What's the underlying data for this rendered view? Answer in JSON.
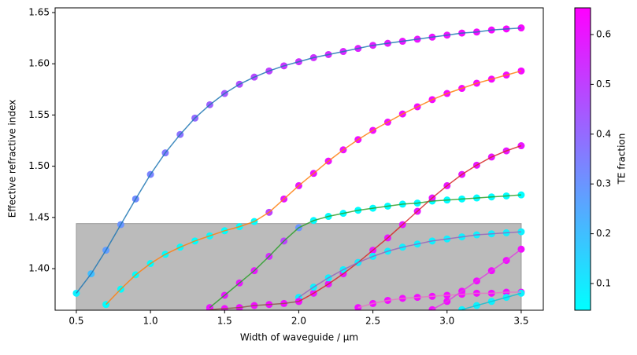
{
  "chart_data": {
    "type": "scatter",
    "xlabel": "Width of waveguide / µm",
    "ylabel": "Effective refractive index",
    "xlim": [
      0.357,
      3.649
    ],
    "ylim": [
      1.3594,
      1.6546
    ],
    "xticks": [
      0.5,
      {
        "value": 1.0,
        "label": "1.0"
      },
      1.5,
      {
        "value": 2.0,
        "label": "2.0"
      },
      2.5,
      {
        "value": 3.0,
        "label": "3.0"
      },
      3.5
    ],
    "yticks": [
      {
        "value": 1.4,
        "label": "1.40"
      },
      {
        "value": 1.45,
        "label": "1.45"
      },
      {
        "value": 1.5,
        "label": "1.50"
      },
      {
        "value": 1.55,
        "label": "1.55"
      },
      {
        "value": 1.6,
        "label": "1.60"
      },
      {
        "value": 1.65,
        "label": "1.65"
      }
    ],
    "band": {
      "x": [
        0.5,
        3.5
      ],
      "top": 1.444,
      "color": "#bbbbbb"
    },
    "colorbar": {
      "label": "TE fraction",
      "lim": [
        0.0464,
        0.6536
      ],
      "ticks": [
        0.1,
        0.2,
        0.3,
        0.4,
        0.5,
        0.6
      ],
      "colors": [
        "#00ffff",
        "#ff00ff"
      ]
    },
    "series": [
      {
        "color": "#1f77b4",
        "x": [
          0.5,
          0.6,
          0.7,
          0.8,
          0.9,
          1.0,
          1.1,
          1.2,
          1.3,
          1.4,
          1.5,
          1.6,
          1.7,
          1.8,
          1.9,
          2.0,
          2.1,
          2.2,
          2.3,
          2.4,
          2.5,
          2.6,
          2.7,
          2.8,
          2.9,
          3.0,
          3.1,
          3.2,
          3.3,
          3.4,
          3.5
        ],
        "values": [
          1.376,
          1.395,
          1.418,
          1.443,
          1.468,
          1.492,
          1.513,
          1.531,
          1.547,
          1.56,
          1.571,
          1.58,
          1.587,
          1.593,
          1.598,
          1.602,
          1.606,
          1.609,
          1.612,
          1.615,
          1.618,
          1.62,
          1.622,
          1.624,
          1.626,
          1.628,
          1.63,
          1.631,
          1.633,
          1.634,
          1.635
        ],
        "te": [
          0.08,
          0.2,
          0.28,
          0.3,
          0.32,
          0.34,
          0.36,
          0.38,
          0.4,
          0.42,
          0.44,
          0.46,
          0.48,
          0.5,
          0.52,
          0.53,
          0.54,
          0.55,
          0.56,
          0.57,
          0.58,
          0.59,
          0.6,
          0.6,
          0.61,
          0.61,
          0.62,
          0.62,
          0.63,
          0.63,
          0.63
        ]
      },
      {
        "color": "#ff7f0e",
        "x": [
          0.7,
          0.8,
          0.9,
          1.0,
          1.1,
          1.2,
          1.3,
          1.4,
          1.5,
          1.6,
          1.7,
          1.8,
          1.9,
          2.0,
          2.1,
          2.2,
          2.3,
          2.4,
          2.5,
          2.6,
          2.7,
          2.8,
          2.9,
          3.0,
          3.1,
          3.2,
          3.3,
          3.4,
          3.5
        ],
        "values": [
          1.365,
          1.38,
          1.394,
          1.405,
          1.414,
          1.421,
          1.427,
          1.432,
          1.437,
          1.441,
          1.446,
          1.455,
          1.468,
          1.481,
          1.493,
          1.505,
          1.516,
          1.526,
          1.535,
          1.543,
          1.551,
          1.558,
          1.565,
          1.571,
          1.576,
          1.581,
          1.585,
          1.589,
          1.593
        ],
        "te": [
          0.05,
          0.05,
          0.05,
          0.05,
          0.05,
          0.05,
          0.05,
          0.05,
          0.05,
          0.05,
          0.05,
          0.5,
          0.6,
          0.6,
          0.61,
          0.61,
          0.61,
          0.62,
          0.62,
          0.62,
          0.62,
          0.62,
          0.63,
          0.63,
          0.63,
          0.63,
          0.63,
          0.63,
          0.63
        ]
      },
      {
        "color": "#2ca02c",
        "x": [
          1.4,
          1.5,
          1.6,
          1.7,
          1.8,
          1.9,
          2.0,
          2.1,
          2.2,
          2.3,
          2.4,
          2.5,
          2.6,
          2.7,
          2.8,
          2.9,
          3.0,
          3.1,
          3.2,
          3.3,
          3.4,
          3.5
        ],
        "values": [
          1.362,
          1.374,
          1.386,
          1.398,
          1.412,
          1.427,
          1.44,
          1.447,
          1.451,
          1.454,
          1.457,
          1.459,
          1.461,
          1.463,
          1.464,
          1.466,
          1.467,
          1.468,
          1.469,
          1.47,
          1.471,
          1.472
        ],
        "te": [
          0.6,
          0.6,
          0.6,
          0.6,
          0.55,
          0.5,
          0.3,
          0.06,
          0.05,
          0.05,
          0.05,
          0.05,
          0.05,
          0.05,
          0.05,
          0.05,
          0.05,
          0.05,
          0.05,
          0.05,
          0.05,
          0.05
        ]
      },
      {
        "color": "#d62728",
        "x": [
          2.0,
          2.1,
          2.2,
          2.3,
          2.4,
          2.5,
          2.6,
          2.7,
          2.8,
          2.9,
          3.0,
          3.1,
          3.2,
          3.3,
          3.4,
          3.5
        ],
        "values": [
          1.368,
          1.376,
          1.385,
          1.395,
          1.406,
          1.418,
          1.43,
          1.443,
          1.456,
          1.469,
          1.481,
          1.492,
          1.501,
          1.509,
          1.515,
          1.52
        ],
        "te": [
          0.6,
          0.6,
          0.6,
          0.6,
          0.6,
          0.6,
          0.6,
          0.6,
          0.6,
          0.6,
          0.6,
          0.6,
          0.6,
          0.6,
          0.6,
          0.6
        ]
      },
      {
        "color": "#9467bd",
        "x": [
          2.0,
          2.1,
          2.2,
          2.3,
          2.4,
          2.5,
          2.6,
          2.7,
          2.8,
          2.9,
          3.0,
          3.1,
          3.2,
          3.3,
          3.4,
          3.5
        ],
        "values": [
          1.372,
          1.382,
          1.391,
          1.399,
          1.406,
          1.412,
          1.417,
          1.421,
          1.424,
          1.427,
          1.429,
          1.431,
          1.433,
          1.434,
          1.435,
          1.436
        ],
        "te": [
          0.08,
          0.08,
          0.08,
          0.08,
          0.08,
          0.08,
          0.08,
          0.08,
          0.08,
          0.08,
          0.08,
          0.08,
          0.08,
          0.08,
          0.08,
          0.08
        ]
      },
      {
        "color": "#8c564b",
        "x": [
          1.4,
          1.5,
          1.6,
          1.7,
          1.8,
          1.9,
          2.0
        ],
        "values": [
          1.36,
          1.361,
          1.362,
          1.364,
          1.365,
          1.366,
          1.368
        ],
        "te": [
          0.62,
          0.62,
          0.62,
          0.62,
          0.62,
          0.62,
          0.62
        ]
      },
      {
        "color": "#e377c2",
        "x": [
          2.4,
          2.5,
          2.6,
          2.7,
          2.8,
          2.9,
          3.0,
          3.1,
          3.2,
          3.3,
          3.4,
          3.5
        ],
        "values": [
          1.362,
          1.366,
          1.369,
          1.371,
          1.372,
          1.373,
          1.374,
          1.375,
          1.376,
          1.376,
          1.377,
          1.377
        ],
        "te": [
          0.62,
          0.62,
          0.62,
          0.62,
          0.62,
          0.62,
          0.62,
          0.62,
          0.62,
          0.62,
          0.62,
          0.62
        ]
      },
      {
        "color": "#e040e0",
        "x": [
          2.9,
          3.0,
          3.1,
          3.2,
          3.3,
          3.4,
          3.5
        ],
        "values": [
          1.36,
          1.368,
          1.378,
          1.388,
          1.398,
          1.408,
          1.419
        ],
        "te": [
          0.62,
          0.62,
          0.62,
          0.62,
          0.62,
          0.62,
          0.62
        ]
      },
      {
        "color": "#17becf",
        "x": [
          3.1,
          3.2,
          3.3,
          3.4,
          3.5
        ],
        "values": [
          1.36,
          1.364,
          1.368,
          1.372,
          1.376
        ],
        "te": [
          0.08,
          0.08,
          0.08,
          0.08,
          0.08
        ]
      }
    ]
  }
}
